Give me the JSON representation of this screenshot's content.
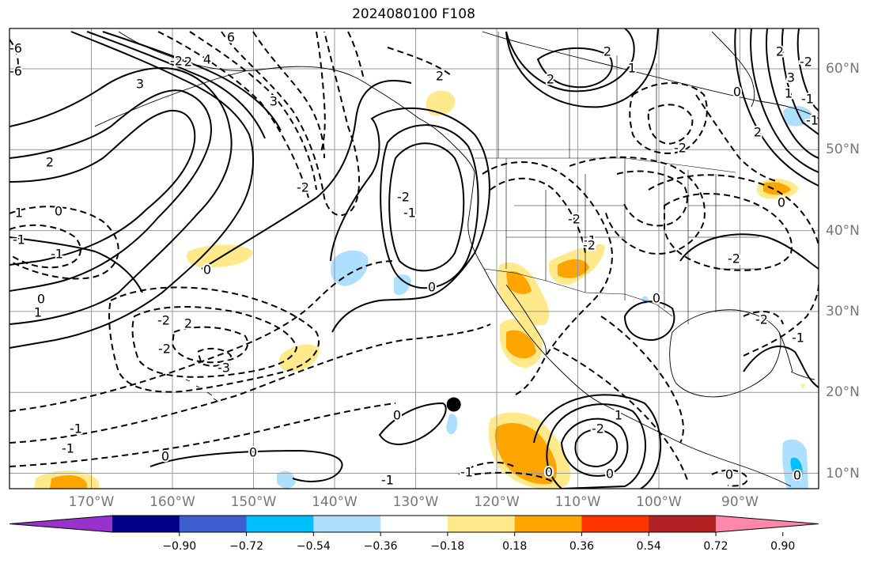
{
  "title": "2024080100 F108",
  "map": {
    "lon_labels": [
      "170°W",
      "160°W",
      "150°W",
      "140°W",
      "130°W",
      "120°W",
      "110°W",
      "100°W",
      "90°W"
    ],
    "lat_labels": [
      "60°N",
      "50°N",
      "40°N",
      "30°N",
      "20°N",
      "10°N"
    ],
    "gridline_color": "#999999",
    "contour_color": "#000000",
    "marker": {
      "label": "black dot marker",
      "lon": -125.3,
      "lat": 18.5
    }
  },
  "colorbar": {
    "tick_labels": [
      "−0.90",
      "−0.72",
      "−0.54",
      "−0.36",
      "−0.18",
      "0.18",
      "0.36",
      "0.54",
      "0.72",
      "0.90"
    ],
    "colors": [
      "#9932CC",
      "#00008B",
      "#3D5FCF",
      "#00BFFF",
      "#ADDFFF",
      "#FFFFFF",
      "#FFE98A",
      "#FFA500",
      "#FF3300",
      "#B22222",
      "#FF88AA"
    ]
  },
  "contour_labels": [
    "6",
    "4",
    "3",
    "3",
    "2",
    "2",
    "1",
    "0",
    "0",
    "-1",
    "-1",
    "-2",
    "-2",
    "-2",
    "-3",
    "-3",
    "-6",
    "-6",
    "0",
    "1",
    "2",
    "-2",
    "-1",
    "2",
    "-2",
    "0",
    "-1",
    "0",
    "-1",
    "2",
    "2",
    "-2",
    "0",
    "0",
    "-2",
    "1",
    "-2",
    "-2",
    "-1",
    "0",
    "-2",
    "0",
    "-1",
    "0",
    "0",
    "1",
    "-1",
    "0",
    "-2",
    "2",
    "-2",
    "-1",
    "-1",
    "3",
    "2",
    "1",
    "-1",
    "0",
    "0"
  ]
}
